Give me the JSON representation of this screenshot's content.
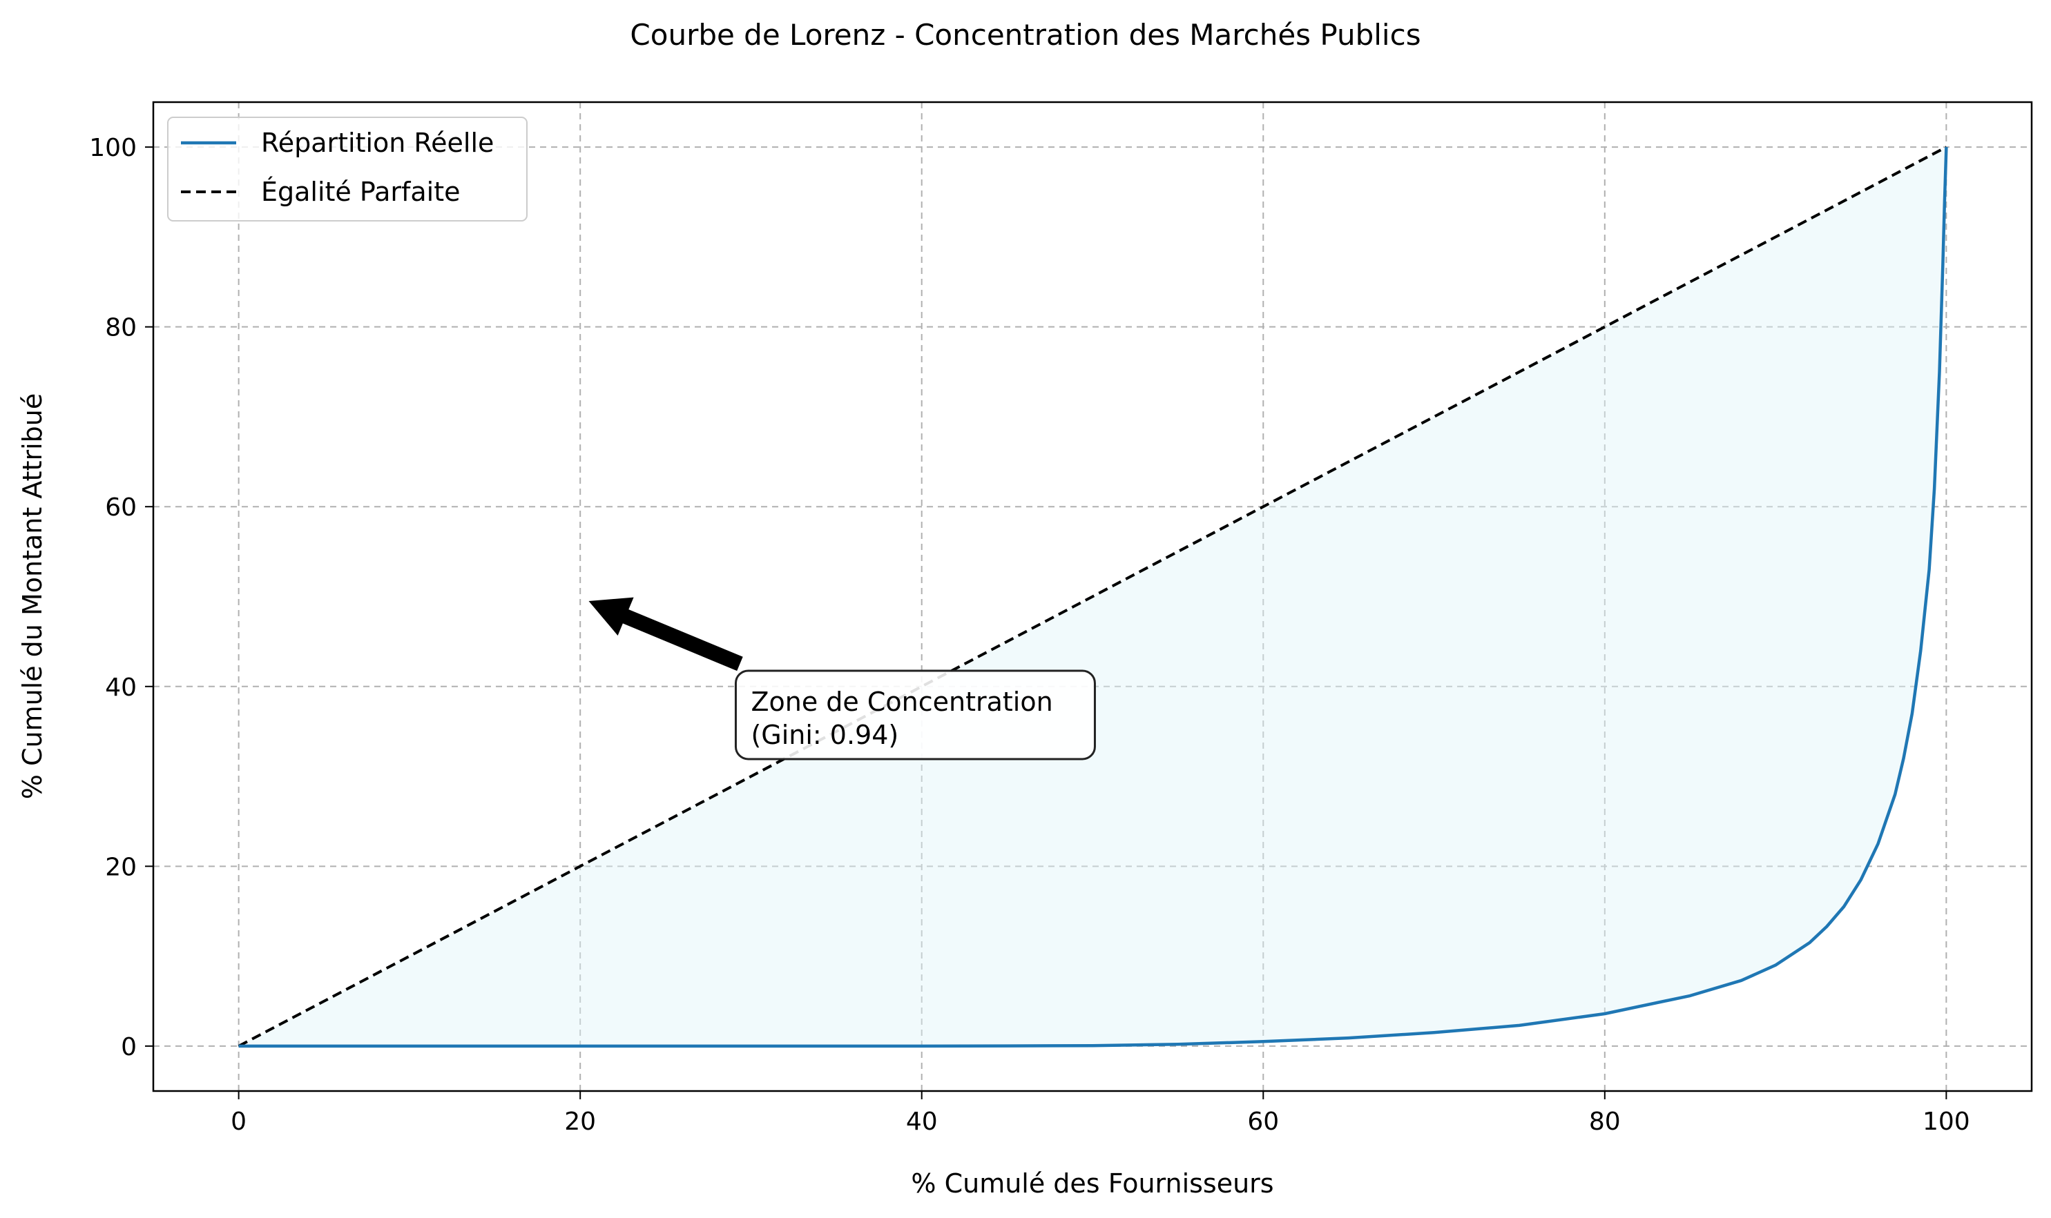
{
  "chart_data": {
    "type": "line",
    "title": "Courbe de Lorenz - Concentration des Marchés Publics",
    "xlabel": "% Cumulé des Fournisseurs",
    "ylabel": "% Cumulé du Montant Attribué",
    "xlim": [
      -5,
      105
    ],
    "ylim": [
      -5,
      105
    ],
    "x_ticks": [
      0,
      20,
      40,
      60,
      80,
      100
    ],
    "y_ticks": [
      0,
      20,
      40,
      60,
      80,
      100
    ],
    "grid": true,
    "legend_position": "top-left",
    "series": [
      {
        "name": "Répartition Réelle",
        "color": "#1f77b4",
        "style": "solid",
        "points": [
          [
            0,
            0
          ],
          [
            10,
            0
          ],
          [
            20,
            0
          ],
          [
            30,
            0
          ],
          [
            40,
            0
          ],
          [
            45,
            0.02
          ],
          [
            50,
            0.05
          ],
          [
            55,
            0.2
          ],
          [
            60,
            0.5
          ],
          [
            65,
            0.9
          ],
          [
            70,
            1.5
          ],
          [
            75,
            2.3
          ],
          [
            80,
            3.6
          ],
          [
            85,
            5.6
          ],
          [
            88,
            7.3
          ],
          [
            90,
            9
          ],
          [
            92,
            11.5
          ],
          [
            93,
            13.3
          ],
          [
            94,
            15.5
          ],
          [
            95,
            18.5
          ],
          [
            96,
            22.5
          ],
          [
            97,
            28
          ],
          [
            97.5,
            32
          ],
          [
            98,
            37
          ],
          [
            98.5,
            44
          ],
          [
            99,
            53
          ],
          [
            99.3,
            62
          ],
          [
            99.6,
            75
          ],
          [
            99.8,
            87
          ],
          [
            99.9,
            94
          ],
          [
            100,
            100
          ]
        ]
      },
      {
        "name": "Égalité Parfaite",
        "color": "#000000",
        "style": "dashed",
        "points": [
          [
            0,
            0
          ],
          [
            100,
            100
          ]
        ]
      }
    ],
    "fill_between": {
      "color": "#e0f3f8",
      "opacity": 0.45
    },
    "annotation": {
      "lines": [
        "Zone de Concentration",
        "(Gini: 0.94)"
      ],
      "text_xy": [
        30,
        33
      ],
      "arrow_tip": [
        20.5,
        49.5
      ]
    }
  }
}
